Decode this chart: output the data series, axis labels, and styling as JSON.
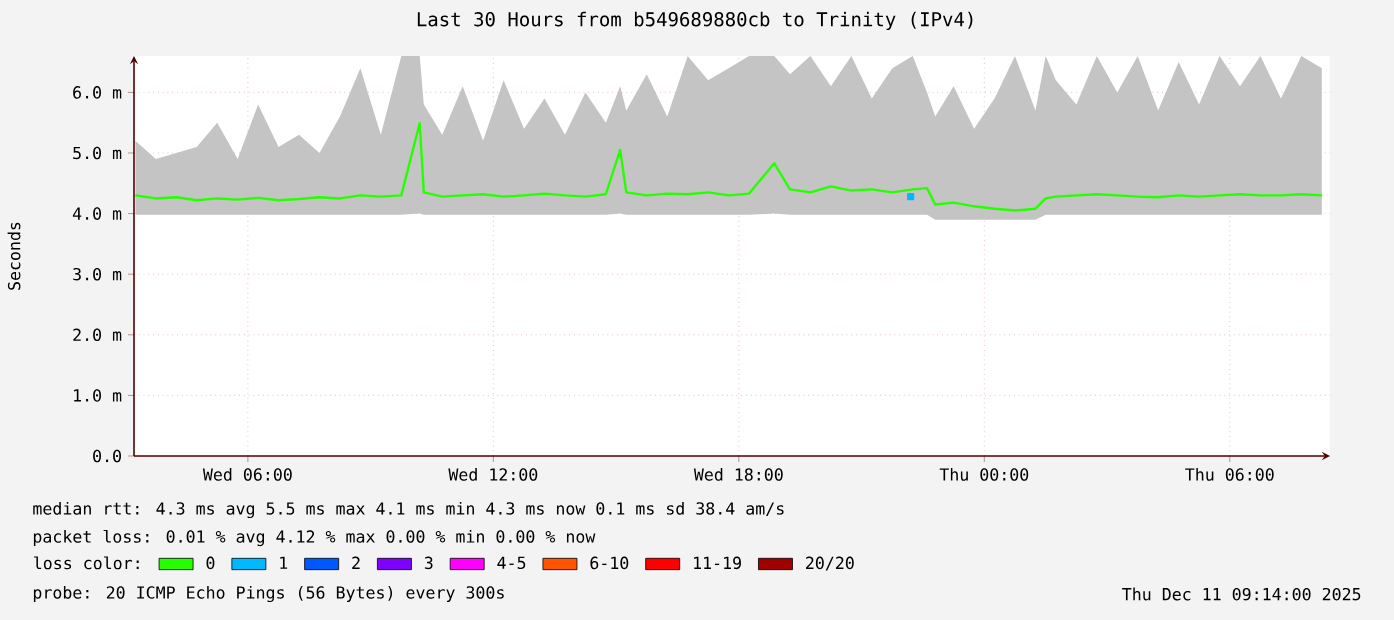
{
  "chart_data": {
    "type": "line",
    "title": "Last 30 Hours from b549689880cb to Trinity (IPv4)",
    "ylabel": "Seconds",
    "xlim": [
      "2025-12-10T03:13",
      "2025-12-11T08:27"
    ],
    "xticks": [
      {
        "value": "2025-12-10T06:00",
        "label": "Wed 06:00"
      },
      {
        "value": "2025-12-10T12:00",
        "label": "Wed 12:00"
      },
      {
        "value": "2025-12-10T18:00",
        "label": "Wed 18:00"
      },
      {
        "value": "2025-12-11T00:00",
        "label": "Thu 00:00"
      },
      {
        "value": "2025-12-11T06:00",
        "label": "Thu 06:00"
      }
    ],
    "ylim": [
      0,
      6.6
    ],
    "yticks": [
      {
        "value": 0,
        "label": "0.0"
      },
      {
        "value": 1,
        "label": "1.0 m"
      },
      {
        "value": 2,
        "label": "2.0 m"
      },
      {
        "value": 3,
        "label": "3.0 m"
      },
      {
        "value": 4,
        "label": "4.0 m"
      },
      {
        "value": 5,
        "label": "5.0 m"
      },
      {
        "value": 6,
        "label": "6.0 m"
      }
    ],
    "grid": true,
    "legend": "bottom",
    "legend_title": "loss color:",
    "series": [
      {
        "name": "0",
        "color": "#26ff00",
        "x": [
          "2025-12-10T03:15",
          "2025-12-10T03:45",
          "2025-12-10T04:15",
          "2025-12-10T04:45",
          "2025-12-10T05:15",
          "2025-12-10T05:45",
          "2025-12-10T06:15",
          "2025-12-10T06:45",
          "2025-12-10T07:15",
          "2025-12-10T07:45",
          "2025-12-10T08:15",
          "2025-12-10T08:45",
          "2025-12-10T09:15",
          "2025-12-10T09:45",
          "2025-12-10T10:12",
          "2025-12-10T10:18",
          "2025-12-10T10:45",
          "2025-12-10T11:15",
          "2025-12-10T11:45",
          "2025-12-10T12:15",
          "2025-12-10T12:45",
          "2025-12-10T13:15",
          "2025-12-10T13:45",
          "2025-12-10T14:15",
          "2025-12-10T14:45",
          "2025-12-10T15:06",
          "2025-12-10T15:15",
          "2025-12-10T15:45",
          "2025-12-10T16:15",
          "2025-12-10T16:45",
          "2025-12-10T17:15",
          "2025-12-10T17:45",
          "2025-12-10T18:15",
          "2025-12-10T18:52",
          "2025-12-10T19:15",
          "2025-12-10T19:45",
          "2025-12-10T20:15",
          "2025-12-10T20:45",
          "2025-12-10T21:15",
          "2025-12-10T21:45",
          "2025-12-10T22:15",
          "2025-12-10T22:36",
          "2025-12-10T22:48",
          "2025-12-10T23:15",
          "2025-12-10T23:45",
          "2025-12-11T00:15",
          "2025-12-11T00:45",
          "2025-12-11T01:15",
          "2025-12-11T01:30",
          "2025-12-11T01:45",
          "2025-12-11T02:15",
          "2025-12-11T02:45",
          "2025-12-11T03:15",
          "2025-12-11T03:45",
          "2025-12-11T04:15",
          "2025-12-11T04:45",
          "2025-12-11T05:15",
          "2025-12-11T05:45",
          "2025-12-11T06:15",
          "2025-12-11T06:45",
          "2025-12-11T07:15",
          "2025-12-11T07:45",
          "2025-12-11T08:15"
        ],
        "values": [
          4.3,
          4.25,
          4.27,
          4.22,
          4.25,
          4.23,
          4.26,
          4.22,
          4.24,
          4.27,
          4.25,
          4.3,
          4.28,
          4.3,
          5.49,
          4.35,
          4.28,
          4.3,
          4.32,
          4.28,
          4.3,
          4.33,
          4.3,
          4.28,
          4.32,
          5.05,
          4.35,
          4.3,
          4.33,
          4.32,
          4.35,
          4.3,
          4.33,
          4.83,
          4.4,
          4.35,
          4.45,
          4.38,
          4.4,
          4.35,
          4.4,
          4.42,
          4.15,
          4.18,
          4.12,
          4.08,
          4.05,
          4.08,
          4.25,
          4.28,
          4.3,
          4.32,
          4.3,
          4.28,
          4.27,
          4.3,
          4.28,
          4.3,
          4.32,
          4.3,
          4.3,
          4.32,
          4.3
        ],
        "lower": [
          3.98,
          3.98,
          3.98,
          3.98,
          3.98,
          3.98,
          3.98,
          3.98,
          3.98,
          3.98,
          3.98,
          3.98,
          3.98,
          3.98,
          4.0,
          3.98,
          3.98,
          3.98,
          3.98,
          3.98,
          3.98,
          3.98,
          3.98,
          3.98,
          3.98,
          4.0,
          3.98,
          3.98,
          3.98,
          3.98,
          3.98,
          3.98,
          3.98,
          4.0,
          3.98,
          3.98,
          3.98,
          3.98,
          3.98,
          3.98,
          3.98,
          3.98,
          3.9,
          3.9,
          3.9,
          3.9,
          3.9,
          3.9,
          3.98,
          3.98,
          3.98,
          3.98,
          3.98,
          3.98,
          3.98,
          3.98,
          3.98,
          3.98,
          3.98,
          3.98,
          3.98,
          3.98,
          3.98
        ],
        "upper": [
          5.2,
          4.9,
          5.0,
          5.1,
          5.5,
          4.9,
          5.8,
          5.1,
          5.3,
          5.0,
          5.6,
          6.4,
          5.3,
          6.6,
          6.6,
          5.8,
          5.3,
          6.1,
          5.2,
          6.2,
          5.4,
          5.9,
          5.3,
          6.0,
          5.5,
          6.1,
          5.7,
          6.3,
          5.6,
          6.6,
          6.2,
          6.4,
          6.6,
          6.6,
          6.3,
          6.6,
          6.1,
          6.6,
          5.9,
          6.4,
          6.6,
          6.0,
          5.6,
          6.1,
          5.4,
          5.9,
          6.6,
          5.7,
          6.6,
          6.2,
          5.8,
          6.6,
          6.0,
          6.6,
          5.7,
          6.5,
          5.8,
          6.6,
          6.1,
          6.6,
          5.9,
          6.6,
          6.4
        ]
      },
      {
        "name": "1",
        "color": "#00b8ff",
        "marker": "square",
        "x": [
          "2025-12-10T22:12"
        ],
        "values": [
          4.28
        ]
      },
      {
        "name": "2",
        "color": "#0059ff"
      },
      {
        "name": "3",
        "color": "#7e00ff"
      },
      {
        "name": "4-5",
        "color": "#ff00ff"
      },
      {
        "name": "6-10",
        "color": "#ff5500"
      },
      {
        "name": "11-19",
        "color": "#ff0000"
      },
      {
        "name": "20/20",
        "color": "#a10000"
      }
    ],
    "annotations": [
      "median rtt: 4.3 ms avg 5.5 ms max 4.1 ms min 4.3 ms now 0.1 ms sd 38.4 am/s",
      "packet loss: 0.01 % avg 4.12 % max 0.00 % min 0.00 % now",
      "probe: 20 ICMP Echo Pings (56 Bytes) every 300s",
      "Thu Dec 11 09:14:00 2025"
    ]
  }
}
